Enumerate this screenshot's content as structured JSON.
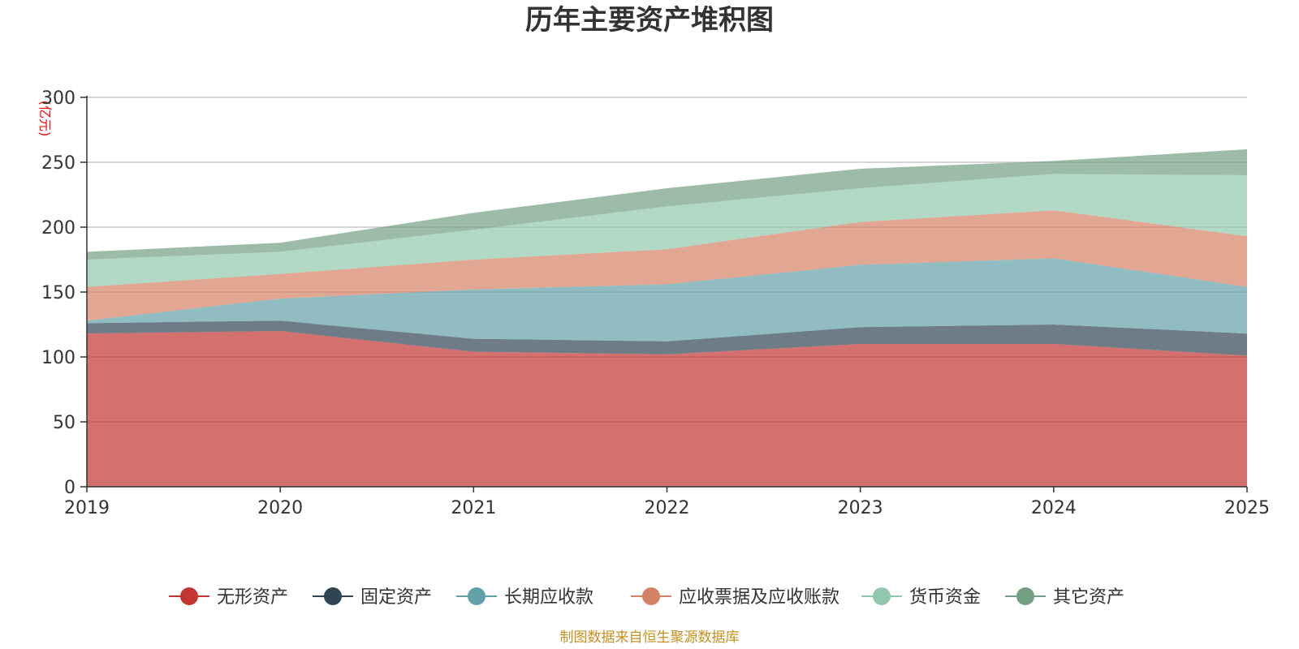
{
  "chart_data": {
    "type": "area",
    "stacked": true,
    "title": "历年主要资产堆积图",
    "ylabel": "(亿元)",
    "xlabel": "",
    "ylim": [
      0,
      300
    ],
    "yticks": [
      "0",
      "50",
      "100",
      "150",
      "200",
      "250",
      "300"
    ],
    "categories": [
      "2019",
      "2020",
      "2021",
      "2022",
      "2023",
      "2024",
      "2025"
    ],
    "grid": true,
    "legend_position": "bottom",
    "series": [
      {
        "name": "无形资产",
        "color": "#c23531",
        "values": [
          118,
          120,
          104,
          102,
          110,
          110,
          101
        ]
      },
      {
        "name": "固定资产",
        "color": "#2f4554",
        "values": [
          8,
          8,
          10,
          10,
          13,
          15,
          17
        ]
      },
      {
        "name": "长期应收款",
        "color": "#61a0a8",
        "values": [
          2,
          17,
          38,
          44,
          48,
          51,
          36
        ]
      },
      {
        "name": "应收票据及应收账款",
        "color": "#d48265",
        "values": [
          26,
          19,
          23,
          27,
          33,
          37,
          39
        ]
      },
      {
        "name": "货币资金",
        "color": "#91c7ae",
        "values": [
          21,
          17,
          23,
          33,
          26,
          28,
          47
        ]
      },
      {
        "name": "其它资产",
        "color": "#749f83",
        "values": [
          6,
          7,
          13,
          14,
          15,
          10,
          20
        ]
      }
    ],
    "source": "制图数据来自恒生聚源数据库"
  }
}
